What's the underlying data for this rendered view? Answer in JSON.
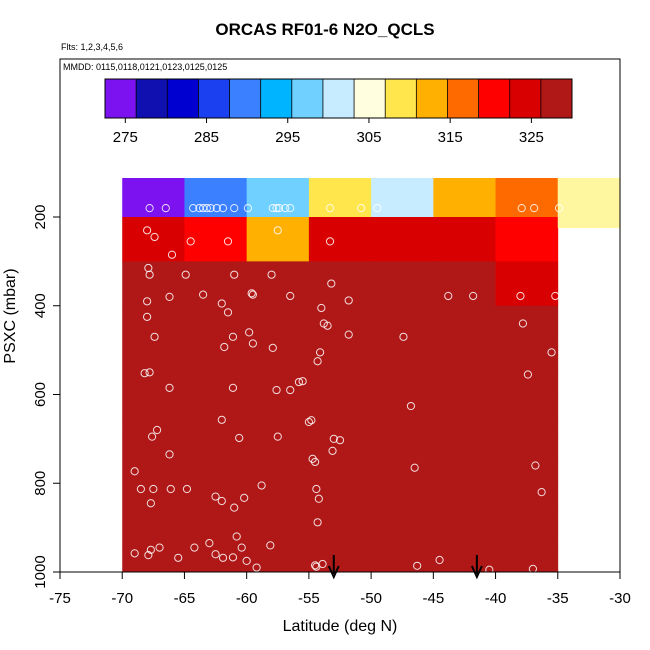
{
  "header": {
    "title": "ORCAS RF01-6 N2O_QCLS",
    "flights_note": "Flts: 1,2,3,4,5,6",
    "dates_note": "MMDD: 0115,0118,0121,0123,0125,0125"
  },
  "colors": {
    "scale": [
      "#7d12f0",
      "#1010b0",
      "#0000d0",
      "#1a40f0",
      "#3a80ff",
      "#00b4ff",
      "#70d0ff",
      "#c8ecff",
      "#ffffe0",
      "#ffe64c",
      "#ffb000",
      "#ff6a00",
      "#ff0000",
      "#d80000",
      "#b01818"
    ]
  },
  "chart_data": {
    "type": "heatmap",
    "title": "ORCAS RF01-6 N2O_QCLS",
    "xlabel": "Latitude (deg N)",
    "ylabel": "PSXC (mbar)",
    "xlim": [
      -75,
      -30
    ],
    "ylim": [
      1000,
      0
    ],
    "x_ticks": [
      -75,
      -70,
      -65,
      -60,
      -55,
      -50,
      -45,
      -40,
      -35,
      -30
    ],
    "y_ticks": [
      200,
      400,
      600,
      800,
      1000
    ],
    "x_tick_labels": [
      "-75",
      "-70",
      "-65",
      "-60",
      "-55",
      "-50",
      "-45",
      "-40",
      "-35",
      "-30"
    ],
    "y_tick_labels": [
      "200",
      "400",
      "600",
      "800",
      "1000"
    ],
    "colorbar": {
      "range": [
        272.5,
        330
      ],
      "ticks": [
        275,
        285,
        295,
        305,
        315,
        325
      ],
      "tick_labels": [
        "275",
        "285",
        "295",
        "305",
        "315",
        "325"
      ]
    },
    "lat_bins": [
      -70,
      -65,
      -60,
      -55,
      -50,
      -45,
      -40,
      -35,
      -30
    ],
    "pres_bins": [
      100,
      150,
      200,
      250,
      300,
      350,
      400,
      450,
      500,
      550,
      600,
      650,
      700,
      750,
      800,
      850,
      900,
      950,
      1000
    ],
    "cell_values": [
      [
        273.5,
        291.5,
        296,
        309,
        303,
        312,
        318,
        311
      ],
      [
        273.5,
        291.5,
        296,
        309,
        303,
        312,
        318,
        311
      ],
      [
        324.5,
        321,
        312,
        325.6,
        325,
        325,
        318.7,
        null
      ],
      [
        324.5,
        321,
        312,
        325.6,
        325,
        325,
        318.7,
        null
      ],
      [
        327.4,
        327.3,
        327.4,
        327.8,
        327.6,
        327.7,
        325,
        null
      ],
      [
        327.4,
        327.3,
        327.4,
        327.8,
        327.6,
        327.7,
        325,
        null
      ],
      [
        327.2,
        327.4,
        327.4,
        327.2,
        327.4,
        327.3,
        327.4,
        null
      ],
      [
        327.2,
        327.4,
        327.4,
        327.2,
        327.4,
        327.3,
        327.4,
        null
      ],
      [
        327.3,
        327.2,
        327.3,
        327.2,
        327.3,
        327.3,
        327.3,
        null
      ],
      [
        327.3,
        327.2,
        327.3,
        327.2,
        327.3,
        327.3,
        327.3,
        null
      ],
      [
        327.5,
        327.3,
        327.4,
        327.3,
        327.2,
        327.3,
        327.3,
        null
      ],
      [
        327.5,
        327.3,
        327.4,
        327.3,
        327.2,
        327.3,
        327.3,
        null
      ],
      [
        327.5,
        327.3,
        327.4,
        327.8,
        327.2,
        327.3,
        327.3,
        null
      ],
      [
        327.5,
        327.3,
        327.4,
        327.8,
        327.2,
        327.3,
        327.3,
        null
      ],
      [
        327.5,
        327.5,
        327.5,
        327.4,
        327.4,
        327.4,
        327.4,
        null
      ],
      [
        327.5,
        327.5,
        327.5,
        327.4,
        327.4,
        327.4,
        327.4,
        null
      ],
      [
        327.5,
        327.5,
        327.5,
        327.3,
        327.3,
        327.3,
        327.3,
        null
      ],
      [
        327.5,
        327.5,
        327.5,
        327.3,
        327.3,
        327.3,
        327.3,
        null
      ]
    ],
    "sample_points": [
      [
        -67.8,
        180
      ],
      [
        -66.5,
        180
      ],
      [
        -64.3,
        180
      ],
      [
        -63.8,
        180
      ],
      [
        -63.5,
        180
      ],
      [
        -63.2,
        180
      ],
      [
        -62.9,
        180
      ],
      [
        -62.4,
        180
      ],
      [
        -61.9,
        180
      ],
      [
        -61.0,
        180
      ],
      [
        -59.9,
        180
      ],
      [
        -57.9,
        180
      ],
      [
        -57.6,
        180
      ],
      [
        -57.4,
        180
      ],
      [
        -56.9,
        180
      ],
      [
        -56.5,
        180
      ],
      [
        -53.3,
        180
      ],
      [
        -50.8,
        180
      ],
      [
        -49.5,
        180
      ],
      [
        -37.9,
        180
      ],
      [
        -36.9,
        180
      ],
      [
        -34.9,
        180
      ],
      [
        -68.0,
        230
      ],
      [
        -67.4,
        245
      ],
      [
        -64.5,
        255
      ],
      [
        -61.5,
        255
      ],
      [
        -57.5,
        230
      ],
      [
        -53.3,
        255
      ],
      [
        -66.0,
        285
      ],
      [
        -67.9,
        315
      ],
      [
        -67.8,
        330
      ],
      [
        -68.0,
        390
      ],
      [
        -66.2,
        380
      ],
      [
        -64.9,
        330
      ],
      [
        -63.5,
        375
      ],
      [
        -61.0,
        330
      ],
      [
        -62.0,
        395
      ],
      [
        -61.5,
        415
      ],
      [
        -59.5,
        375
      ],
      [
        -59.6,
        372
      ],
      [
        -58.0,
        330
      ],
      [
        -56.5,
        378
      ],
      [
        -54.0,
        405
      ],
      [
        -53.2,
        350
      ],
      [
        -51.8,
        388
      ],
      [
        -43.8,
        378
      ],
      [
        -41.8,
        378
      ],
      [
        -38.0,
        378
      ],
      [
        -35.2,
        378
      ],
      [
        -68.0,
        425
      ],
      [
        -67.4,
        470
      ],
      [
        -61.8,
        493
      ],
      [
        -61.1,
        470
      ],
      [
        -59.8,
        460
      ],
      [
        -59.5,
        485
      ],
      [
        -57.9,
        495
      ],
      [
        -54.1,
        505
      ],
      [
        -54.3,
        525
      ],
      [
        -53.8,
        440
      ],
      [
        -53.5,
        445
      ],
      [
        -51.8,
        465
      ],
      [
        -47.4,
        470
      ],
      [
        -37.8,
        440
      ],
      [
        -35.5,
        505
      ],
      [
        -68.2,
        552
      ],
      [
        -67.8,
        550
      ],
      [
        -66.2,
        585
      ],
      [
        -61.1,
        585
      ],
      [
        -57.6,
        590
      ],
      [
        -56.5,
        590
      ],
      [
        -55.8,
        572
      ],
      [
        -55.5,
        570
      ],
      [
        -37.4,
        555
      ],
      [
        -46.8,
        626
      ],
      [
        -62.0,
        657
      ],
      [
        -55.0,
        662
      ],
      [
        -54.8,
        658
      ],
      [
        -67.6,
        695
      ],
      [
        -67.2,
        680
      ],
      [
        -60.6,
        698
      ],
      [
        -57.5,
        695
      ],
      [
        -53.0,
        700
      ],
      [
        -52.5,
        703
      ],
      [
        -53.1,
        727
      ],
      [
        -69.0,
        773
      ],
      [
        -66.2,
        735
      ],
      [
        -54.7,
        745
      ],
      [
        -54.5,
        752
      ],
      [
        -46.5,
        765
      ],
      [
        -36.8,
        760
      ],
      [
        -68.5,
        813
      ],
      [
        -67.5,
        813
      ],
      [
        -66.1,
        813
      ],
      [
        -64.8,
        813
      ],
      [
        -62.5,
        830
      ],
      [
        -62.0,
        840
      ],
      [
        -61.0,
        855
      ],
      [
        -60.2,
        833
      ],
      [
        -58.8,
        805
      ],
      [
        -67.7,
        845
      ],
      [
        -54.4,
        813
      ],
      [
        -54.2,
        835
      ],
      [
        -54.3,
        888
      ],
      [
        -36.3,
        820
      ],
      [
        -69.0,
        958
      ],
      [
        -67.9,
        962
      ],
      [
        -67.7,
        950
      ],
      [
        -67.0,
        945
      ],
      [
        -65.5,
        968
      ],
      [
        -64.2,
        945
      ],
      [
        -63.0,
        935
      ],
      [
        -62.5,
        960
      ],
      [
        -61.9,
        968
      ],
      [
        -61.1,
        967
      ],
      [
        -60.8,
        920
      ],
      [
        -60.4,
        945
      ],
      [
        -60.0,
        975
      ],
      [
        -59.2,
        990
      ],
      [
        -58.1,
        940
      ],
      [
        -54.4,
        988
      ],
      [
        -54.5,
        985
      ],
      [
        -53.9,
        982
      ],
      [
        -46.3,
        986
      ],
      [
        -44.5,
        973
      ],
      [
        -40.5,
        995
      ],
      [
        -37.0,
        993
      ]
    ],
    "flight_markers_lat": [
      -53.0,
      -41.5
    ]
  }
}
